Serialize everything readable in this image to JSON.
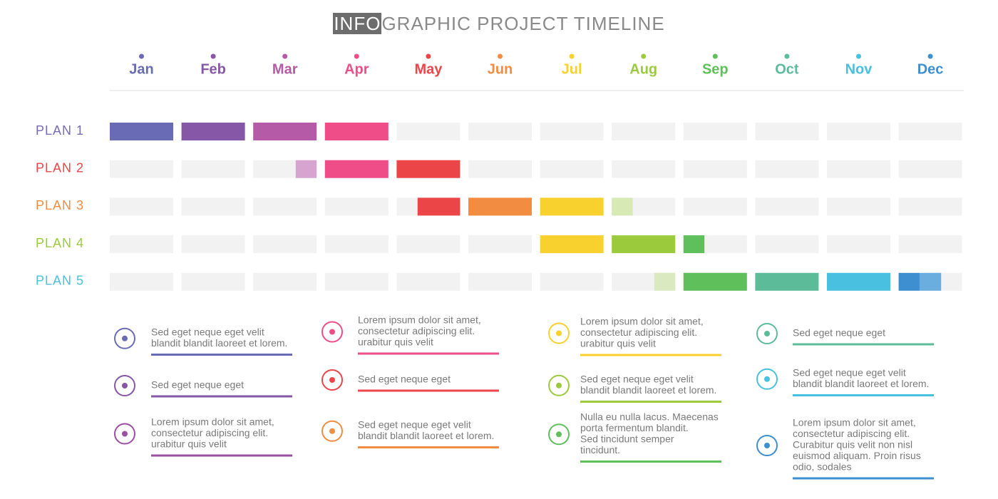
{
  "title": {
    "highlight": "INFO",
    "rest": "GRAPHIC  PROJECT  TIMELINE"
  },
  "months": [
    {
      "label": "Jan",
      "color": "#6a6bb5"
    },
    {
      "label": "Feb",
      "color": "#8657a6"
    },
    {
      "label": "Mar",
      "color": "#b45aa6"
    },
    {
      "label": "Apr",
      "color": "#ee4d88"
    },
    {
      "label": "May",
      "color": "#ec4548"
    },
    {
      "label": "Jun",
      "color": "#f28c40"
    },
    {
      "label": "Jul",
      "color": "#f8d12e"
    },
    {
      "label": "Aug",
      "color": "#9bcb3c"
    },
    {
      "label": "Sep",
      "color": "#5ebf5b"
    },
    {
      "label": "Oct",
      "color": "#5cbc9a"
    },
    {
      "label": "Nov",
      "color": "#49c0df"
    },
    {
      "label": "Dec",
      "color": "#3e8fcf"
    }
  ],
  "plans": [
    {
      "label": "PLAN 1",
      "color": "#7a6bb8",
      "segments": [
        {
          "start": 0,
          "end": 1,
          "color": "#6a6bb5"
        },
        {
          "start": 1,
          "end": 2,
          "color": "#8657a6"
        },
        {
          "start": 2,
          "end": 3,
          "color": "#b45aa6"
        },
        {
          "start": 3,
          "end": 4,
          "color": "#ee4d88"
        }
      ]
    },
    {
      "label": "PLAN 2",
      "color": "#ec4548",
      "segments": [
        {
          "start": 2.67,
          "end": 3,
          "color": "#d7a3cf"
        },
        {
          "start": 3,
          "end": 4,
          "color": "#ee4d88"
        },
        {
          "start": 4,
          "end": 5,
          "color": "#ec4548"
        }
      ]
    },
    {
      "label": "PLAN 3",
      "color": "#f28c40",
      "segments": [
        {
          "start": 4.33,
          "end": 5,
          "color": "#ec4548"
        },
        {
          "start": 5,
          "end": 6,
          "color": "#f28c40"
        },
        {
          "start": 6,
          "end": 7,
          "color": "#f8d12e"
        },
        {
          "start": 7,
          "end": 7.33,
          "color": "#d7e9b4"
        }
      ]
    },
    {
      "label": "PLAN 4",
      "color": "#9bcb3c",
      "segments": [
        {
          "start": 6,
          "end": 7,
          "color": "#f8d12e"
        },
        {
          "start": 7,
          "end": 8,
          "color": "#9bcb3c"
        },
        {
          "start": 8,
          "end": 8.33,
          "color": "#5ebf5b"
        }
      ]
    },
    {
      "label": "PLAN 5",
      "color": "#49c0df",
      "segments": [
        {
          "start": 7.67,
          "end": 8,
          "color": "#dbe9c0"
        },
        {
          "start": 8,
          "end": 9,
          "color": "#5ebf5b"
        },
        {
          "start": 9,
          "end": 10,
          "color": "#5cbc9a"
        },
        {
          "start": 10,
          "end": 11,
          "color": "#49c0df"
        },
        {
          "start": 11,
          "end": 11.33,
          "color": "#3e8fcf"
        },
        {
          "start": 11.33,
          "end": 11.67,
          "color": "#6aaee0"
        }
      ]
    }
  ],
  "notes": [
    {
      "lines": [
        "Sed eget neque eget velit",
        "blandit blandit laoreet et lorem."
      ],
      "color": "#6a6bb5"
    },
    {
      "lines": [
        "Sed eget neque eget"
      ],
      "color": "#8657a6"
    },
    {
      "lines": [
        "Lorem ipsum dolor sit amet,",
        "consectetur adipiscing elit.",
        "urabitur quis velit"
      ],
      "color": "#9b4fa1"
    },
    {
      "lines": [
        "Lorem ipsum dolor sit amet,",
        "consectetur adipiscing elit.",
        "urabitur quis velit"
      ],
      "color": "#ee4d88"
    },
    {
      "lines": [
        "Sed eget neque eget"
      ],
      "color": "#ec4548"
    },
    {
      "lines": [
        "Sed eget neque eget velit",
        "blandit blandit laoreet et lorem."
      ],
      "color": "#f28c40"
    },
    {
      "lines": [
        "Lorem ipsum dolor sit amet,",
        "consectetur adipiscing elit.",
        "urabitur quis velit"
      ],
      "color": "#f8d12e"
    },
    {
      "lines": [
        "Sed eget neque eget velit",
        "blandit blandit laoreet et lorem."
      ],
      "color": "#9bcb3c"
    },
    {
      "lines": [
        "Nulla eu nulla lacus. Maecenas",
        "porta fermentum blandit.",
        "Sed tincidunt semper",
        "tincidunt."
      ],
      "color": "#5ebf5b"
    },
    {
      "lines": [
        "Sed eget neque eget"
      ],
      "color": "#5cbc9a"
    },
    {
      "lines": [
        "Sed eget neque eget velit",
        "blandit blandit laoreet et lorem."
      ],
      "color": "#49c0df"
    },
    {
      "lines": [
        "Lorem ipsum dolor sit amet,",
        "consectetur adipiscing elit.",
        "Curabitur quis velit non nisl",
        "euismod aliquam. Proin risus",
        "odio, sodales"
      ],
      "color": "#3e8fcf"
    }
  ]
}
